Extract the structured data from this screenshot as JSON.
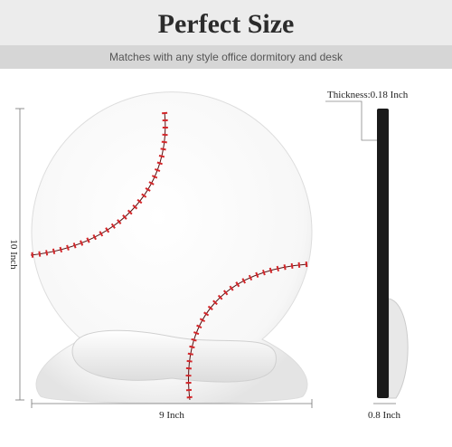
{
  "header": {
    "title": "Perfect Size",
    "subtitle": "Matches with any style office dormitory and desk"
  },
  "dimensions": {
    "thickness": "Thickness:0.18 Inch",
    "height": "10 Inch",
    "width": "9 Inch",
    "depth": "0.8 Inch"
  }
}
